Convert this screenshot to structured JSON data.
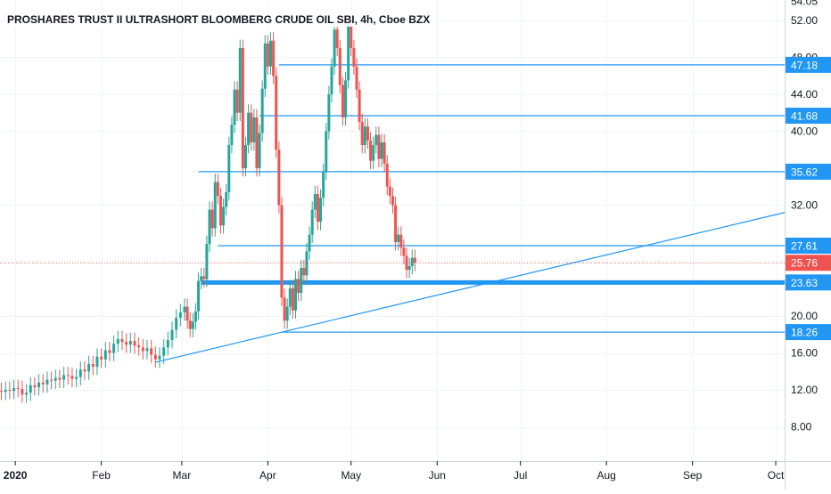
{
  "chart_data": {
    "type": "candlestick",
    "title": "PROSHARES TRUST II ULTRASHORT BLOOMBERG CRUDE OIL SBI, 4h, Cboe BZX",
    "ylim": [
      4.3,
      54.2
    ],
    "y_ticks": [
      "52.00",
      "48.00",
      "44.00",
      "40.00",
      "32.00",
      "20.00",
      "16.00",
      "12.00",
      "8.00"
    ],
    "x_ticks": [
      {
        "label": "2020",
        "day": 0
      },
      {
        "label": "Feb",
        "day": 31
      },
      {
        "label": "Mar",
        "day": 60
      },
      {
        "label": "Apr",
        "day": 91
      },
      {
        "label": "May",
        "day": 121
      },
      {
        "label": "Jun",
        "day": 152
      },
      {
        "label": "Jul",
        "day": 182
      },
      {
        "label": "Aug",
        "day": 213
      },
      {
        "label": "Sep",
        "day": 244
      },
      {
        "label": "Oct",
        "day": 274
      }
    ],
    "x_range_days": [
      -5.5,
      277.2
    ],
    "top_partial_label": "54.05",
    "price_levels": [
      {
        "label": "47.18",
        "value": 47.18,
        "from_day": 95
      },
      {
        "label": "41.68",
        "value": 41.68,
        "from_day": 88
      },
      {
        "label": "35.62",
        "value": 35.62,
        "from_day": 66
      },
      {
        "label": "27.61",
        "value": 27.61,
        "from_day": 73
      },
      {
        "label": "23.63",
        "value": 23.63,
        "from_day": 67,
        "thick": true
      },
      {
        "label": "18.26",
        "value": 18.26,
        "from_day": 96
      }
    ],
    "trend_lines": [
      {
        "from": {
          "day": 50.5,
          "value": 15.0
        },
        "to": {
          "day": 277.2,
          "value": 31.2
        }
      },
      {
        "from": {
          "day": 96,
          "value": 18.26
        },
        "to": {
          "day": 277.2,
          "value": 18.26
        }
      }
    ],
    "last_price": {
      "label": "25.76",
      "value": 25.76
    },
    "candles": [
      [
        -5.0,
        11.9,
        11.8
      ],
      [
        -3.5,
        11.8,
        12.0
      ],
      [
        -2.0,
        12.0,
        11.9
      ],
      [
        -0.5,
        11.9,
        12.2
      ],
      [
        1.0,
        12.2,
        12.1
      ],
      [
        2.5,
        12.1,
        11.5
      ],
      [
        4.0,
        11.5,
        11.7
      ],
      [
        5.5,
        11.7,
        12.5
      ],
      [
        7.0,
        12.5,
        12.3
      ],
      [
        8.5,
        12.3,
        12.8
      ],
      [
        10.0,
        12.8,
        12.6
      ],
      [
        11.5,
        12.6,
        13.1
      ],
      [
        13.0,
        13.1,
        13.0
      ],
      [
        14.5,
        13.0,
        13.3
      ],
      [
        16.0,
        13.3,
        13.1
      ],
      [
        17.5,
        13.1,
        13.6
      ],
      [
        19.0,
        13.6,
        13.5
      ],
      [
        20.5,
        13.5,
        13.2
      ],
      [
        22.0,
        13.2,
        13.4
      ],
      [
        23.5,
        13.4,
        14.2
      ],
      [
        25.0,
        14.2,
        14.0
      ],
      [
        26.5,
        14.0,
        14.8
      ],
      [
        28.0,
        14.8,
        14.5
      ],
      [
        29.5,
        14.5,
        15.6
      ],
      [
        31.0,
        15.6,
        15.3
      ],
      [
        32.5,
        15.3,
        16.3
      ],
      [
        34.0,
        16.3,
        16.0
      ],
      [
        35.5,
        16.0,
        17.0
      ],
      [
        37.0,
        17.0,
        17.5
      ],
      [
        38.5,
        17.5,
        17.2
      ],
      [
        40.0,
        17.2,
        16.9
      ],
      [
        41.5,
        16.9,
        17.3
      ],
      [
        43.0,
        17.3,
        16.8
      ],
      [
        44.5,
        16.8,
        16.6
      ],
      [
        46.0,
        16.6,
        16.2
      ],
      [
        47.5,
        16.2,
        16.5
      ],
      [
        49.0,
        16.5,
        15.8
      ],
      [
        50.5,
        15.8,
        15.3
      ],
      [
        52.0,
        15.3,
        15.7
      ],
      [
        53.5,
        15.7,
        16.6
      ],
      [
        55.0,
        16.6,
        17.4
      ],
      [
        56.5,
        17.4,
        18.5
      ],
      [
        58.0,
        18.5,
        19.8
      ],
      [
        59.5,
        19.8,
        20.4
      ],
      [
        61.0,
        20.4,
        21.0
      ],
      [
        62.0,
        21.0,
        19.5
      ],
      [
        63.0,
        19.5,
        18.6
      ],
      [
        64.0,
        18.6,
        19.4
      ],
      [
        65.0,
        19.4,
        20.5
      ],
      [
        66.0,
        20.5,
        23.8
      ],
      [
        67.0,
        23.8,
        24.3
      ],
      [
        68.0,
        24.3,
        24.0
      ],
      [
        69.0,
        24.0,
        27.8
      ],
      [
        70.0,
        27.8,
        31.5
      ],
      [
        71.0,
        31.5,
        29.5
      ],
      [
        72.0,
        29.5,
        34.5
      ],
      [
        73.0,
        34.5,
        33.0
      ],
      [
        74.0,
        33.0,
        29.8
      ],
      [
        75.0,
        29.8,
        31.8
      ],
      [
        76.0,
        31.8,
        33.4
      ],
      [
        77.0,
        33.4,
        38.5
      ],
      [
        78.0,
        38.5,
        40.7
      ],
      [
        79.0,
        40.7,
        44.5
      ],
      [
        80.0,
        44.5,
        42.0
      ],
      [
        81.0,
        42.0,
        49.0
      ],
      [
        82.0,
        49.0,
        36.0
      ],
      [
        83.0,
        36.0,
        38.5
      ],
      [
        84.0,
        38.5,
        42.0
      ],
      [
        85.0,
        42.0,
        38.8
      ],
      [
        86.0,
        38.8,
        41.5
      ],
      [
        87.0,
        41.5,
        36.0
      ],
      [
        88.0,
        36.0,
        39.8
      ],
      [
        89.0,
        39.8,
        44.6
      ],
      [
        90.0,
        44.6,
        49.5
      ],
      [
        91.0,
        49.5,
        47.0
      ],
      [
        92.0,
        47.0,
        49.8
      ],
      [
        93.0,
        49.8,
        46.0
      ],
      [
        94.0,
        46.0,
        38.0
      ],
      [
        95.0,
        38.0,
        32.0
      ],
      [
        96.0,
        32.0,
        22.0
      ],
      [
        97.0,
        22.0,
        19.5
      ],
      [
        98.0,
        19.5,
        21.0
      ],
      [
        99.0,
        21.0,
        23.0
      ],
      [
        100.0,
        23.0,
        20.6
      ],
      [
        101.0,
        20.6,
        24.0
      ],
      [
        102.0,
        24.0,
        22.5
      ],
      [
        103.0,
        22.5,
        25.2
      ],
      [
        104.0,
        25.2,
        24.4
      ],
      [
        105.0,
        24.4,
        27.0
      ],
      [
        106.0,
        27.0,
        28.8
      ],
      [
        107.0,
        28.8,
        31.5
      ],
      [
        108.0,
        31.5,
        33.2
      ],
      [
        109.0,
        33.2,
        30.2
      ],
      [
        110.0,
        30.2,
        32.8
      ],
      [
        111.0,
        32.8,
        35.6
      ],
      [
        112.0,
        35.6,
        40.0
      ],
      [
        113.0,
        40.0,
        44.0
      ],
      [
        114.0,
        44.0,
        47.0
      ],
      [
        115.0,
        47.0,
        51.0
      ],
      [
        116.0,
        51.0,
        49.0
      ],
      [
        117.0,
        49.0,
        45.0
      ],
      [
        118.0,
        45.0,
        41.5
      ],
      [
        119.0,
        41.5,
        45.5
      ],
      [
        120.0,
        45.5,
        51.5
      ],
      [
        121.0,
        51.5,
        49.0
      ],
      [
        122.0,
        49.0,
        47.0
      ],
      [
        123.0,
        47.0,
        44.5
      ],
      [
        124.0,
        44.5,
        41.0
      ],
      [
        125.0,
        41.0,
        38.5
      ],
      [
        126.0,
        38.5,
        40.5
      ],
      [
        127.0,
        40.5,
        39.0
      ],
      [
        128.0,
        39.0,
        36.8
      ],
      [
        129.0,
        36.8,
        38.5
      ],
      [
        130.0,
        38.5,
        39.6
      ],
      [
        131.0,
        39.6,
        37.0
      ],
      [
        132.0,
        37.0,
        38.8
      ],
      [
        133.0,
        38.8,
        36.5
      ],
      [
        134.0,
        36.5,
        34.0
      ],
      [
        135.0,
        34.0,
        33.0
      ],
      [
        136.0,
        33.0,
        32.0
      ],
      [
        137.0,
        32.0,
        28.0
      ],
      [
        138.0,
        28.0,
        28.8
      ],
      [
        139.0,
        28.8,
        27.4
      ],
      [
        140.0,
        27.4,
        26.5
      ],
      [
        141.0,
        26.5,
        25.0
      ],
      [
        142.0,
        25.0,
        25.4
      ],
      [
        143.0,
        25.4,
        26.3
      ],
      [
        144.0,
        26.3,
        25.76
      ]
    ]
  }
}
